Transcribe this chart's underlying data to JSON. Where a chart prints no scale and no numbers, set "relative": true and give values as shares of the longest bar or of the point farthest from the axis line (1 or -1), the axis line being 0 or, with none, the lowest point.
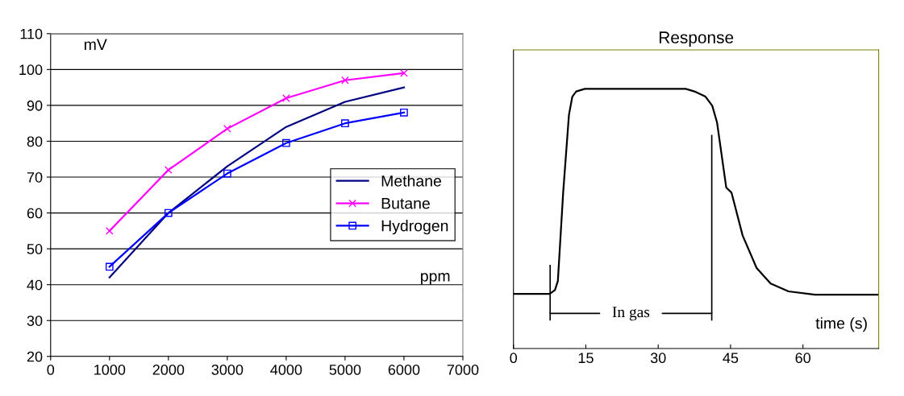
{
  "chart_data": [
    {
      "type": "line",
      "xlabel": "ppm",
      "ylabel": "mV",
      "x": [
        1000,
        2000,
        3000,
        4000,
        5000,
        6000
      ],
      "series": [
        {
          "name": "Methane",
          "color": "#000080",
          "marker": "none",
          "values": [
            42,
            60,
            73,
            84,
            91,
            95
          ]
        },
        {
          "name": "Butane",
          "color": "#ff00ff",
          "marker": "cross",
          "values": [
            55,
            72,
            83.5,
            92,
            97,
            99
          ]
        },
        {
          "name": "Hydrogen",
          "color": "#0000ff",
          "marker": "square",
          "values": [
            45,
            60,
            71,
            79.5,
            85,
            88
          ]
        }
      ],
      "xlim": [
        0,
        7000
      ],
      "xticks": [
        0,
        1000,
        2000,
        3000,
        4000,
        5000,
        6000,
        7000
      ],
      "ylim": [
        20,
        110
      ],
      "yticks": [
        20,
        30,
        40,
        50,
        60,
        70,
        80,
        90,
        100,
        110
      ],
      "grid": "y",
      "legend": "right"
    },
    {
      "type": "line",
      "title": "Response",
      "xlabel": "time (s)",
      "relative": true,
      "x": [
        0,
        7.5,
        8.6,
        9.2,
        10.3,
        11.5,
        12.2,
        13.0,
        14.8,
        35.7,
        37.5,
        39.8,
        41.2,
        42.2,
        44.1,
        45.2,
        47.5,
        50.4,
        53.3,
        57.0,
        62.5,
        75.7
      ],
      "series": [
        {
          "color": "#000000",
          "values": [
            0.21,
            0.21,
            0.225,
            0.26,
            0.6,
            0.9,
            0.97,
            0.99,
            1,
            1,
            0.99,
            0.97,
            0.935,
            0.87,
            0.62,
            0.6,
            0.435,
            0.31,
            0.25,
            0.22,
            0.207,
            0.207
          ]
        }
      ],
      "xlim": [
        0,
        75.7
      ],
      "xticks": [
        0,
        15,
        30,
        45,
        60
      ],
      "ref_lines": [
        {
          "axis": "x",
          "value": 7.6
        },
        {
          "axis": "x",
          "value": 41.1
        }
      ],
      "annotations": [
        "In gas"
      ]
    }
  ]
}
